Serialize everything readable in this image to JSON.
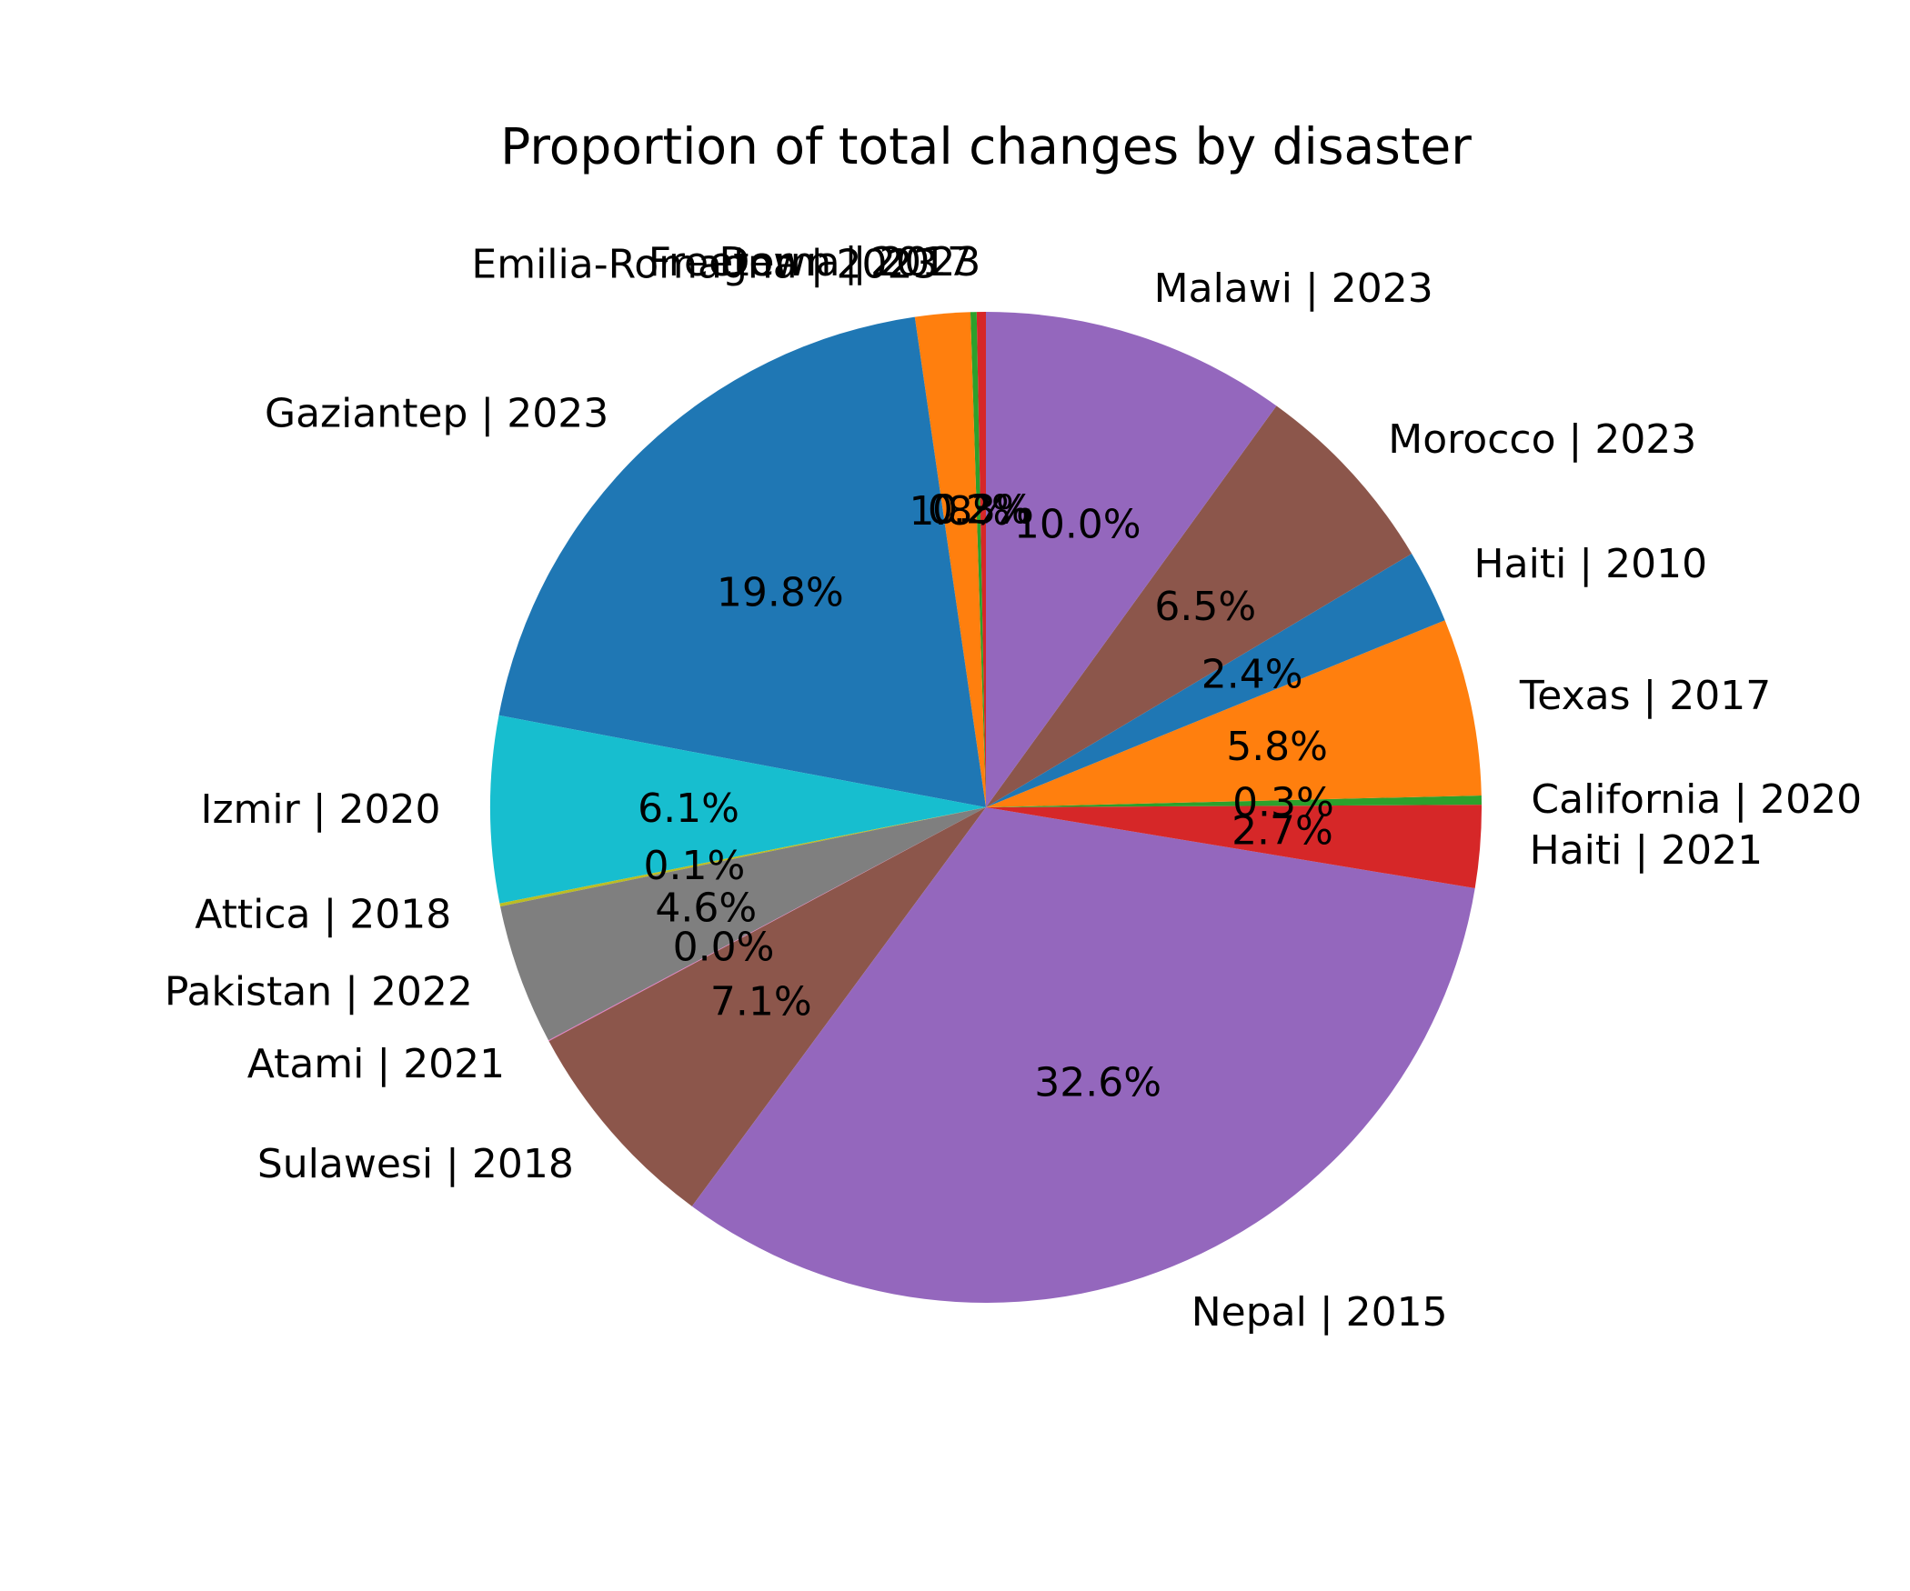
{
  "chart_data": {
    "type": "pie",
    "title": "Proportion of total changes by disaster",
    "start_angle_deg": 90,
    "direction": "counterclockwise",
    "slices": [
      {
        "label": "Derna | 2023",
        "value": 0.3,
        "pct_label": "0.3%",
        "color": "#d62728"
      },
      {
        "label": "Freetown | 2017",
        "value": 0.2,
        "pct_label": "0.2%",
        "color": "#2ca02c"
      },
      {
        "label": "Emilia-Romagna | 2023",
        "value": 1.8,
        "pct_label": "1.8%",
        "color": "#ff7f0e"
      },
      {
        "label": "Gaziantep | 2023",
        "value": 19.8,
        "pct_label": "19.8%",
        "color": "#1f77b4"
      },
      {
        "label": "Izmir | 2020",
        "value": 6.1,
        "pct_label": "6.1%",
        "color": "#17becf"
      },
      {
        "label": "Attica | 2018",
        "value": 0.1,
        "pct_label": "0.1%",
        "color": "#bcbd22"
      },
      {
        "label": "Pakistan | 2022",
        "value": 4.6,
        "pct_label": "4.6%",
        "color": "#7f7f7f"
      },
      {
        "label": "Atami | 2021",
        "value": 0.03,
        "pct_label": "0.0%",
        "color": "#e377c2"
      },
      {
        "label": "Sulawesi | 2018",
        "value": 7.1,
        "pct_label": "7.1%",
        "color": "#8c564b"
      },
      {
        "label": "Nepal | 2015",
        "value": 32.6,
        "pct_label": "32.6%",
        "color": "#9467bd"
      },
      {
        "label": "Haiti | 2021",
        "value": 2.7,
        "pct_label": "2.7%",
        "color": "#d62728"
      },
      {
        "label": "California | 2020",
        "value": 0.3,
        "pct_label": "0.3%",
        "color": "#2ca02c"
      },
      {
        "label": "Texas | 2017",
        "value": 5.8,
        "pct_label": "5.8%",
        "color": "#ff7f0e"
      },
      {
        "label": "Haiti | 2010",
        "value": 2.4,
        "pct_label": "2.4%",
        "color": "#1f77b4"
      },
      {
        "label": "Morocco | 2023",
        "value": 6.5,
        "pct_label": "6.5%",
        "color": "#8c564b"
      },
      {
        "label": "Malawi | 2023",
        "value": 10.0,
        "pct_label": "10.0%",
        "color": "#9467bd"
      }
    ]
  }
}
